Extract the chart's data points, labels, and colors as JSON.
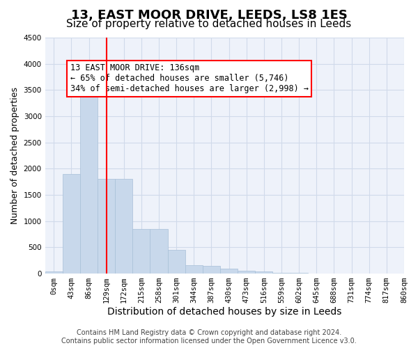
{
  "title": "13, EAST MOOR DRIVE, LEEDS, LS8 1ES",
  "subtitle": "Size of property relative to detached houses in Leeds",
  "xlabel": "Distribution of detached houses by size in Leeds",
  "ylabel": "Number of detached properties",
  "bar_color": "#c8d8eb",
  "bar_edge_color": "#a8c0d8",
  "grid_color": "#d0daea",
  "background_color": "#eef2fa",
  "vline_color": "red",
  "vline_x": 3,
  "annotation_text": "13 EAST MOOR DRIVE: 136sqm\n← 65% of detached houses are smaller (5,746)\n34% of semi-detached houses are larger (2,998) →",
  "annotation_box_color": "white",
  "annotation_box_edge": "red",
  "bins": [
    "0sqm",
    "43sqm",
    "86sqm",
    "129sqm",
    "172sqm",
    "215sqm",
    "258sqm",
    "301sqm",
    "344sqm",
    "387sqm",
    "430sqm",
    "473sqm",
    "516sqm",
    "559sqm",
    "602sqm",
    "645sqm",
    "688sqm",
    "731sqm",
    "774sqm",
    "817sqm",
    "860sqm"
  ],
  "values": [
    40,
    1900,
    3500,
    1800,
    1800,
    850,
    850,
    450,
    160,
    150,
    95,
    60,
    40,
    20,
    10,
    5,
    2,
    1,
    1,
    0
  ],
  "ylim": [
    0,
    4500
  ],
  "yticks": [
    0,
    500,
    1000,
    1500,
    2000,
    2500,
    3000,
    3500,
    4000,
    4500
  ],
  "footer": "Contains HM Land Registry data © Crown copyright and database right 2024.\nContains public sector information licensed under the Open Government Licence v3.0.",
  "title_fontsize": 13,
  "subtitle_fontsize": 11,
  "xlabel_fontsize": 10,
  "ylabel_fontsize": 9,
  "tick_fontsize": 7.5,
  "annotation_fontsize": 8.5,
  "footer_fontsize": 7
}
